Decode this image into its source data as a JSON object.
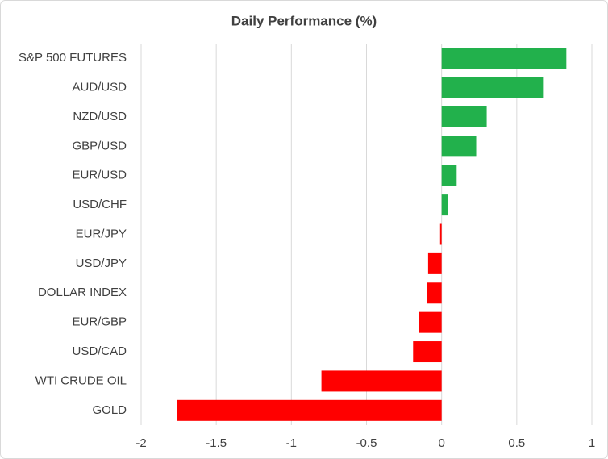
{
  "chart_data": {
    "type": "hbar",
    "title": "Daily Performance (%)",
    "categories": [
      "S&P 500 FUTURES",
      "AUD/USD",
      "NZD/USD",
      "GBP/USD",
      "EUR/USD",
      "USD/CHF",
      "EUR/JPY",
      "USD/JPY",
      "DOLLAR INDEX",
      "EUR/GBP",
      "USD/CAD",
      "WTI CRUDE OIL",
      "GOLD"
    ],
    "values": [
      0.83,
      0.68,
      0.3,
      0.23,
      0.1,
      0.04,
      -0.01,
      -0.09,
      -0.1,
      -0.15,
      -0.19,
      -0.8,
      -1.76
    ],
    "color_positive": "#22b14c",
    "color_negative": "#ff0000",
    "xlim": [
      -2,
      1
    ],
    "xticks": [
      -2,
      -1.5,
      -1,
      -0.5,
      0,
      0.5,
      1
    ],
    "grid": true
  }
}
